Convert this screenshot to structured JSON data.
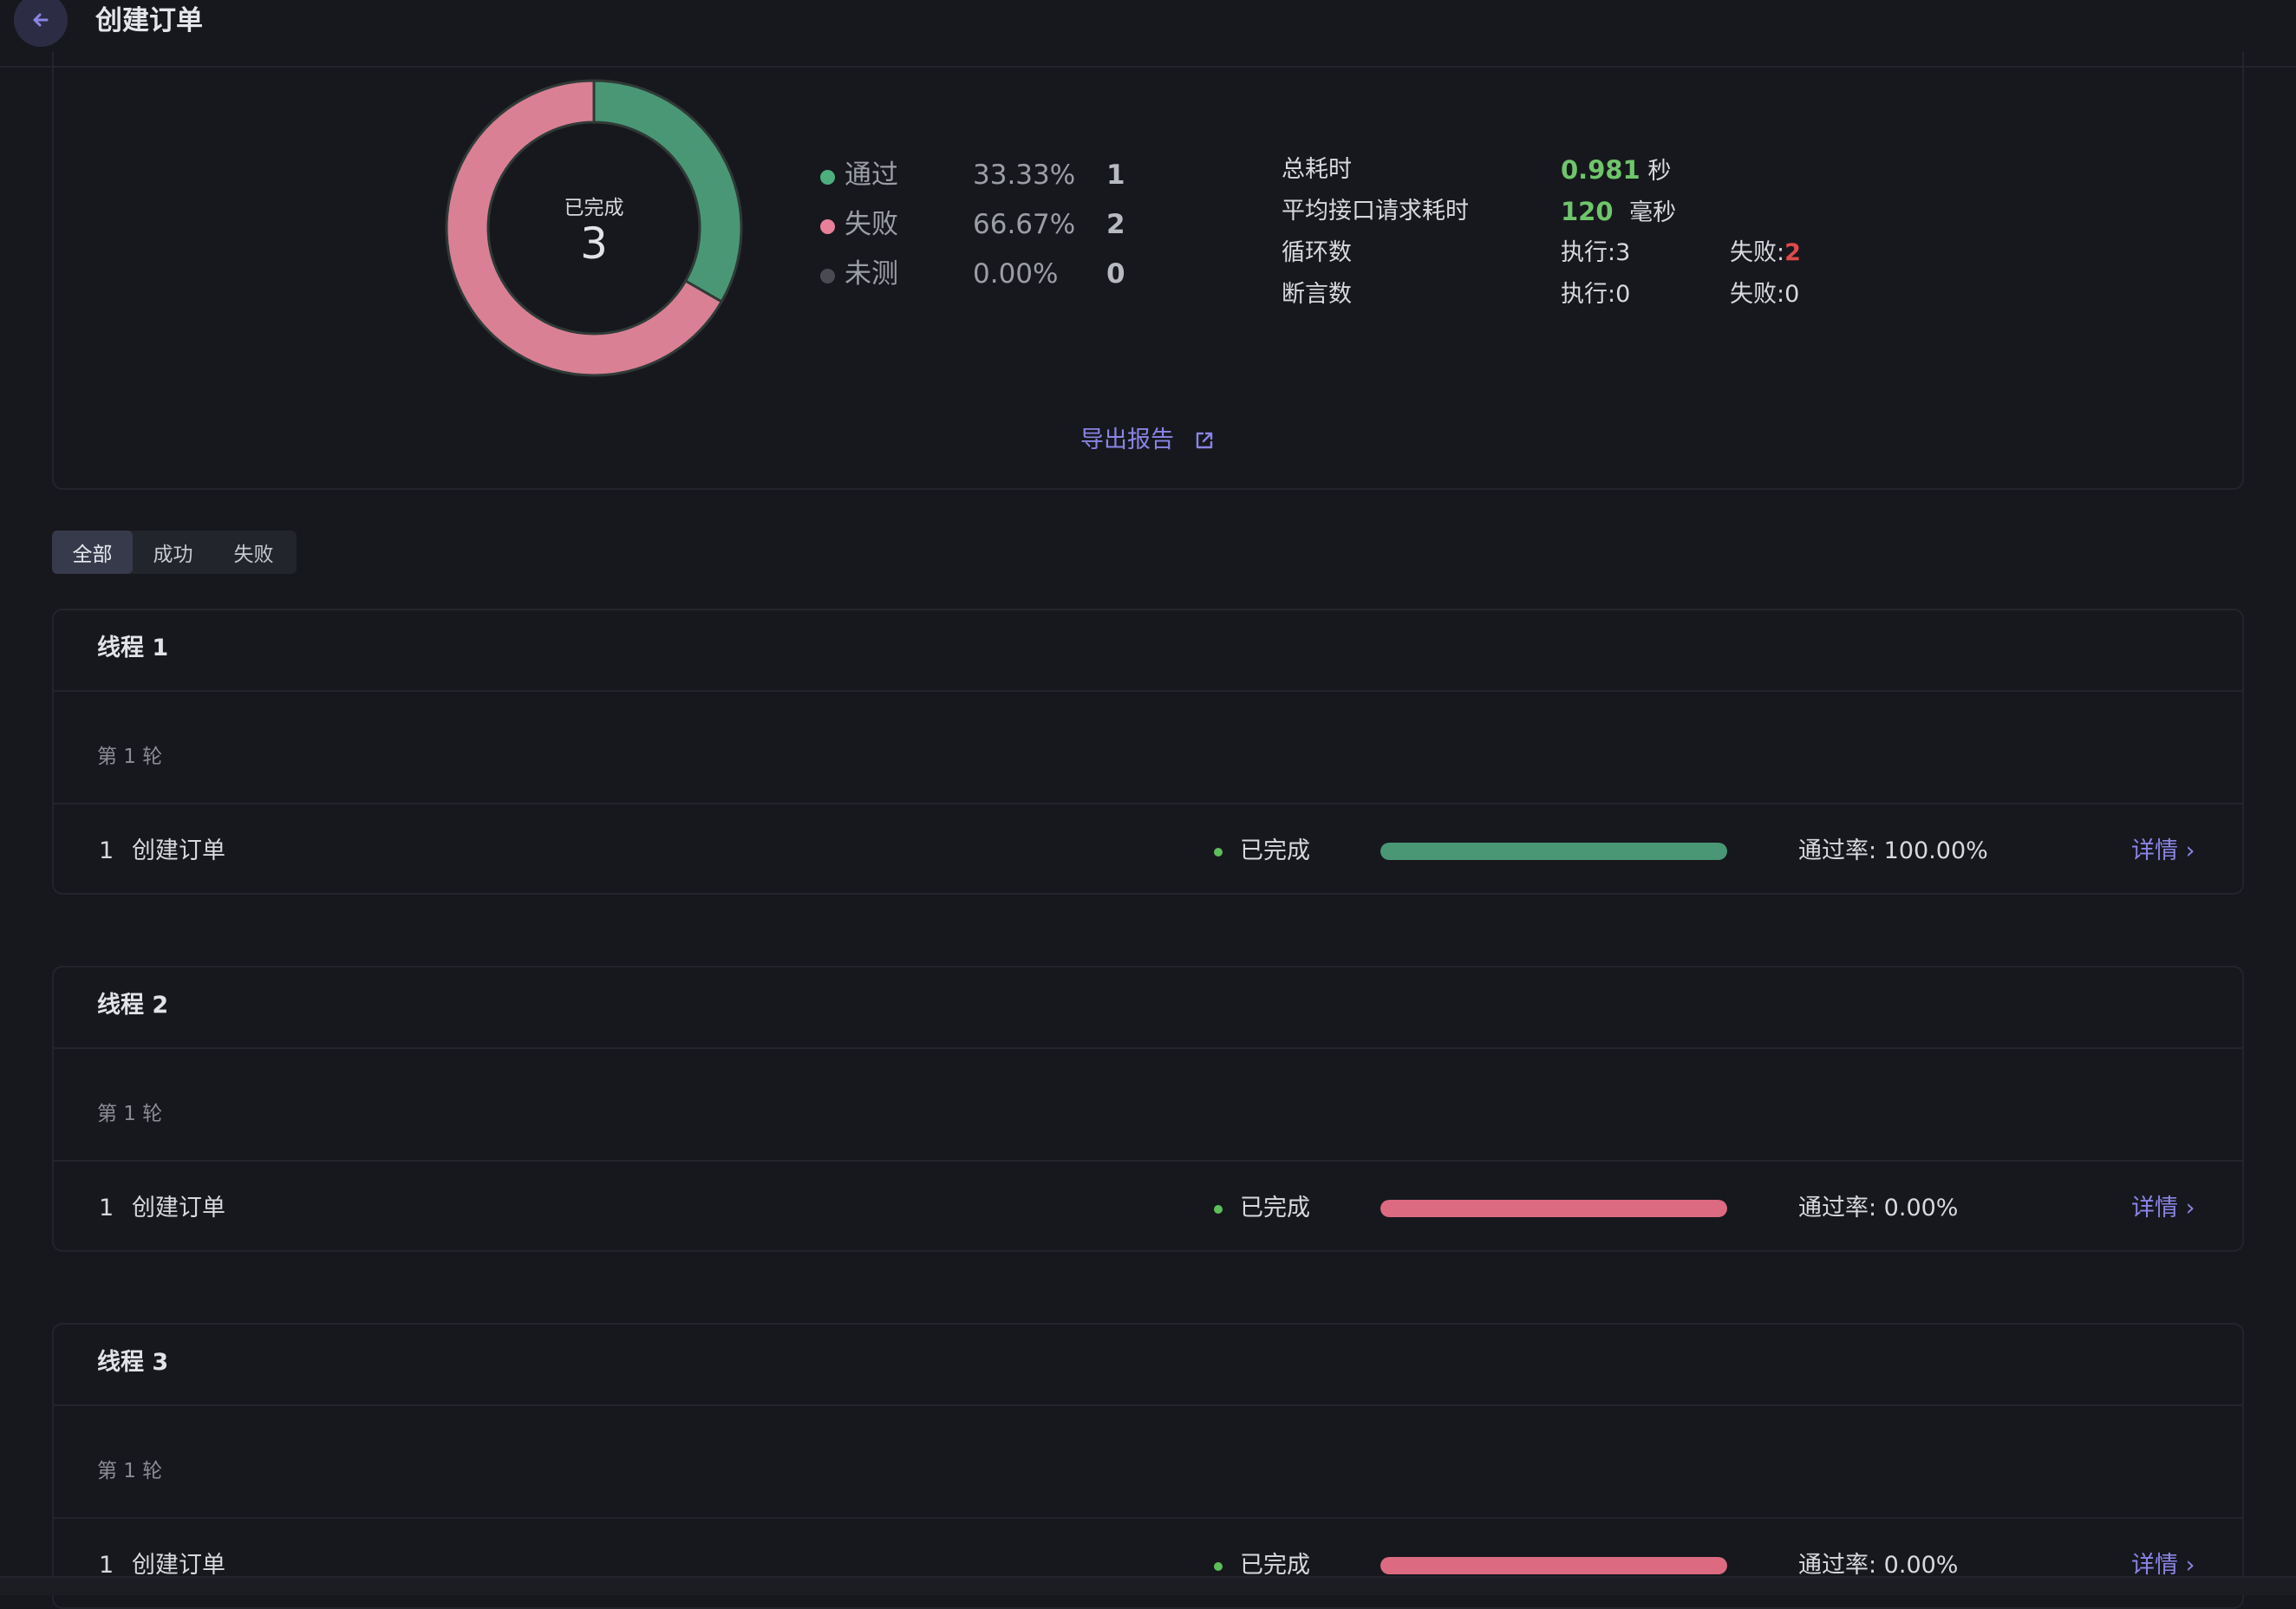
{
  "header": {
    "title": "创建订单"
  },
  "chart_data": {
    "type": "pie",
    "center_label": "已完成",
    "center_value": "3",
    "categories": [
      "通过",
      "失败",
      "未测"
    ],
    "values": [
      1,
      2,
      0
    ],
    "colors": [
      "#4a9776",
      "#d98095",
      "#4a4b52"
    ]
  },
  "legend": [
    {
      "label": "通过",
      "percent": "33.33%",
      "count": "1",
      "color": "#4caf7d"
    },
    {
      "label": "失败",
      "percent": "66.67%",
      "count": "2",
      "color": "#e8809a"
    },
    {
      "label": "未测",
      "percent": "0.00%",
      "count": "0",
      "color": "#4a4b52"
    }
  ],
  "stats": {
    "total_time_label": "总耗时",
    "total_time_value": "0.981",
    "total_time_unit": "秒",
    "avg_label": "平均接口请求耗时",
    "avg_value": "120",
    "avg_unit": "毫秒",
    "loop_label": "循环数",
    "loop_exec": "执行:3",
    "loop_fail_label": "失败:",
    "loop_fail_value": "2",
    "assert_label": "断言数",
    "assert_exec": "执行:0",
    "assert_fail": "失败:0"
  },
  "export": {
    "label": "导出报告"
  },
  "filters": [
    "全部",
    "成功",
    "失败"
  ],
  "threads": [
    {
      "title": "线程 1",
      "round": "第 1 轮",
      "index": "1",
      "name": "创建订单",
      "status": "已完成",
      "pass_rate": "通过率: 100.00%",
      "progress": 1.0,
      "bar_color": "#4a9776",
      "detail": "详情 ›"
    },
    {
      "title": "线程 2",
      "round": "第 1 轮",
      "index": "1",
      "name": "创建订单",
      "status": "已完成",
      "pass_rate": "通过率: 0.00%",
      "progress": 1.0,
      "bar_color": "#dc6a81",
      "detail": "详情 ›"
    },
    {
      "title": "线程 3",
      "round": "第 1 轮",
      "index": "1",
      "name": "创建订单",
      "status": "已完成",
      "pass_rate": "通过率: 0.00%",
      "progress": 1.0,
      "bar_color": "#dc6a81",
      "detail": "详情 ›"
    }
  ]
}
